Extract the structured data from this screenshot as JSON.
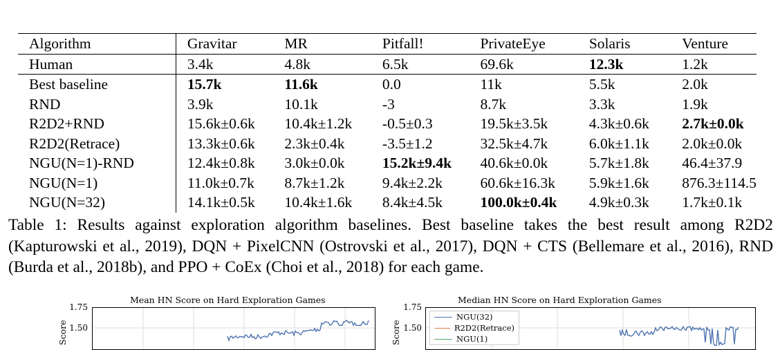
{
  "table": {
    "headers": [
      "Algorithm",
      "Gravitar",
      "MR",
      "Pitfall!",
      "PrivateEye",
      "Solaris",
      "Venture"
    ],
    "human": [
      "Human",
      "3.4k",
      "4.8k",
      "6.5k",
      "69.6k",
      "12.3k",
      "1.2k"
    ],
    "rows": [
      [
        "Best baseline",
        "15.7k",
        "11.6k",
        "0.0",
        "11k",
        "5.5k",
        "2.0k"
      ],
      [
        "RND",
        "3.9k",
        "10.1k",
        "-3",
        "8.7k",
        "3.3k",
        "1.9k"
      ],
      [
        "R2D2+RND",
        "15.6k±0.6k",
        "10.4k±1.2k",
        "-0.5±0.3",
        "19.5k±3.5k",
        "4.3k±0.6k",
        "2.7k±0.0k"
      ],
      [
        "R2D2(Retrace)",
        "13.3k±0.6k",
        "2.3k±0.4k",
        "-3.5±1.2",
        "32.5k±4.7k",
        "6.0k±1.1k",
        "2.0k±0.0k"
      ],
      [
        "NGU(N=1)-RND",
        "12.4k±0.8k",
        "3.0k±0.0k",
        "15.2k±9.4k",
        "40.6k±0.0k",
        "5.7k±1.8k",
        "46.4±37.9"
      ],
      [
        "NGU(N=1)",
        "11.0k±0.7k",
        "8.7k±1.2k",
        "9.4k±2.2k",
        "60.6k±16.3k",
        "5.9k±1.6k",
        "876.3±114.5"
      ],
      [
        "NGU(N=32)",
        "14.1k±0.5k",
        "10.4k±1.6k",
        "8.4k±4.5k",
        "100.0k±0.4k",
        "4.9k±0.3k",
        "1.7k±0.1k"
      ]
    ]
  },
  "caption": "Table 1: Results against exploration algorithm baselines. Best baseline takes the best result among R2D2 (Kapturowski et al., 2019), DQN + PixelCNN (Ostrovski et al., 2017), DQN + CTS (Bellemare et al., 2016), RND (Burda et al., 2018b), and PPO + CoEx (Choi et al., 2018) for each game.",
  "figures": {
    "left": {
      "title": "Mean HN Score on Hard Exploration Games",
      "ylabel": "Score",
      "yticks": [
        "1.75",
        "1.50"
      ]
    },
    "right": {
      "title": "Median HN Score on Hard Exploration Games",
      "ylabel": "Score",
      "yticks": [
        "1.75",
        "1.50"
      ],
      "legend": [
        "NGU(32)",
        "R2D2(Retrace)",
        "NGU(1)"
      ]
    }
  },
  "colors": {
    "ngu32": "#4c72b0",
    "r2d2_retrace": "#dd8452",
    "ngu1": "#55a868"
  }
}
